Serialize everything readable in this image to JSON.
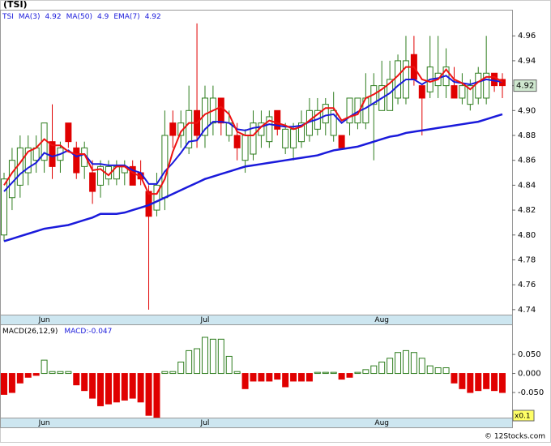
{
  "chart_data": [
    {
      "type": "candlestick",
      "title": "(TSI)",
      "ticker": "TSI",
      "categories": [
        null,
        null,
        null,
        null,
        null,
        "Jun",
        null,
        null,
        null,
        null,
        null,
        null,
        null,
        null,
        null,
        null,
        null,
        null,
        null,
        null,
        null,
        null,
        null,
        null,
        null,
        "Jul",
        null,
        null,
        null,
        null,
        null,
        null,
        null,
        null,
        null,
        null,
        null,
        null,
        null,
        null,
        null,
        null,
        null,
        null,
        null,
        null,
        null,
        "Aug",
        null,
        null,
        null,
        null,
        null,
        null,
        null,
        null,
        null,
        null,
        null,
        null,
        null,
        null,
        null
      ],
      "open": [
        4.8,
        4.83,
        4.84,
        4.85,
        4.86,
        4.86,
        4.875,
        4.86,
        4.89,
        4.87,
        4.855,
        4.85,
        4.84,
        4.845,
        4.845,
        4.85,
        4.855,
        4.85,
        4.835,
        4.82,
        4.83,
        4.89,
        4.88,
        4.87,
        4.9,
        4.88,
        4.89,
        4.91,
        4.88,
        4.88,
        4.86,
        4.865,
        4.88,
        4.875,
        4.9,
        4.87,
        4.87,
        4.875,
        4.88,
        4.885,
        4.89,
        4.88,
        4.88,
        4.89,
        4.89,
        4.89,
        4.905,
        4.9,
        4.9,
        4.91,
        4.91,
        4.945,
        4.92,
        4.915,
        4.92,
        4.92,
        4.92,
        4.91,
        4.905,
        4.91,
        4.91,
        4.93,
        4.925
      ],
      "high": [
        4.85,
        4.87,
        4.88,
        4.88,
        4.88,
        4.89,
        4.905,
        4.875,
        4.89,
        4.875,
        4.875,
        4.86,
        4.86,
        4.86,
        4.86,
        4.86,
        4.86,
        4.86,
        4.84,
        4.85,
        4.9,
        4.9,
        4.9,
        4.92,
        4.97,
        4.92,
        4.92,
        4.91,
        4.9,
        4.89,
        4.885,
        4.9,
        4.9,
        4.9,
        4.9,
        4.89,
        4.89,
        4.9,
        4.91,
        4.91,
        4.91,
        4.915,
        4.88,
        4.91,
        4.91,
        4.93,
        4.93,
        4.94,
        4.94,
        4.945,
        4.96,
        4.96,
        4.92,
        4.96,
        4.96,
        4.95,
        4.935,
        4.93,
        4.925,
        4.935,
        4.96,
        4.93,
        4.93
      ],
      "low": [
        4.795,
        4.82,
        4.83,
        4.84,
        4.85,
        4.85,
        4.845,
        4.85,
        4.87,
        4.845,
        4.845,
        4.825,
        4.83,
        4.84,
        4.84,
        4.84,
        4.84,
        4.84,
        4.74,
        4.815,
        4.82,
        4.87,
        4.87,
        4.865,
        4.87,
        4.87,
        4.88,
        4.88,
        4.875,
        4.86,
        4.85,
        4.86,
        4.87,
        4.87,
        4.88,
        4.865,
        4.86,
        4.87,
        4.875,
        4.88,
        4.88,
        4.875,
        4.87,
        4.88,
        4.885,
        4.885,
        4.86,
        4.9,
        4.9,
        4.905,
        4.905,
        4.92,
        4.88,
        4.91,
        4.91,
        4.91,
        4.91,
        4.905,
        4.9,
        4.905,
        4.905,
        4.915,
        4.91
      ],
      "close": [
        4.845,
        4.86,
        4.87,
        4.87,
        4.87,
        4.89,
        4.855,
        4.87,
        4.875,
        4.85,
        4.87,
        4.835,
        4.855,
        4.855,
        4.855,
        4.855,
        4.84,
        4.845,
        4.815,
        4.84,
        4.88,
        4.88,
        4.89,
        4.9,
        4.88,
        4.91,
        4.91,
        4.89,
        4.89,
        4.87,
        4.88,
        4.89,
        4.89,
        4.895,
        4.885,
        4.885,
        4.885,
        4.89,
        4.9,
        4.9,
        4.905,
        4.9,
        4.87,
        4.91,
        4.91,
        4.91,
        4.92,
        4.92,
        4.925,
        4.94,
        4.94,
        4.925,
        4.91,
        4.935,
        4.93,
        4.935,
        4.91,
        4.92,
        4.92,
        4.93,
        4.93,
        4.92,
        4.92
      ],
      "up_color": "#2e7d1e",
      "down_color": "#e00000",
      "series": [
        {
          "name": "MA(3)",
          "last": 4.92,
          "color": "#ee1111",
          "width": 2,
          "values": [
            4.84,
            4.85,
            4.858,
            4.867,
            4.87,
            4.877,
            4.872,
            4.872,
            4.867,
            4.865,
            4.865,
            4.852,
            4.853,
            4.848,
            4.855,
            4.855,
            4.85,
            4.847,
            4.833,
            4.833,
            4.845,
            4.867,
            4.883,
            4.89,
            4.89,
            4.897,
            4.9,
            4.903,
            4.897,
            4.883,
            4.88,
            4.88,
            4.887,
            4.892,
            4.89,
            4.888,
            4.885,
            4.887,
            4.892,
            4.897,
            4.902,
            4.902,
            4.892,
            4.895,
            4.897,
            4.91,
            4.913,
            4.917,
            4.922,
            4.928,
            4.935,
            4.935,
            4.925,
            4.923,
            4.925,
            4.933,
            4.925,
            4.922,
            4.917,
            4.923,
            4.927,
            4.927,
            4.923
          ]
        },
        {
          "name": "MA(50)",
          "last": 4.9,
          "color": "#1a1adb",
          "width": 2.5,
          "values": [
            4.795,
            4.797,
            4.799,
            4.801,
            4.803,
            4.805,
            4.806,
            4.807,
            4.808,
            4.81,
            4.812,
            4.814,
            4.817,
            4.817,
            4.817,
            4.818,
            4.82,
            4.822,
            4.824,
            4.827,
            4.83,
            4.833,
            4.836,
            4.839,
            4.842,
            4.845,
            4.847,
            4.849,
            4.851,
            4.853,
            4.855,
            4.856,
            4.857,
            4.858,
            4.859,
            4.86,
            4.861,
            4.862,
            4.863,
            4.864,
            4.866,
            4.868,
            4.869,
            4.87,
            4.871,
            4.873,
            4.875,
            4.877,
            4.879,
            4.88,
            4.882,
            4.883,
            4.884,
            4.885,
            4.886,
            4.887,
            4.888,
            4.889,
            4.89,
            4.891,
            4.893,
            4.895,
            4.897
          ]
        },
        {
          "name": "EMA(7)",
          "last": 4.92,
          "color": "#1a1adb",
          "width": 2,
          "values": [
            4.835,
            4.842,
            4.849,
            4.854,
            4.858,
            4.866,
            4.863,
            4.865,
            4.868,
            4.863,
            4.865,
            4.857,
            4.857,
            4.856,
            4.856,
            4.856,
            4.852,
            4.85,
            4.841,
            4.841,
            4.851,
            4.858,
            4.866,
            4.875,
            4.876,
            4.885,
            4.891,
            4.891,
            4.89,
            4.885,
            4.884,
            4.886,
            4.887,
            4.889,
            4.888,
            4.887,
            4.887,
            4.888,
            4.891,
            4.893,
            4.896,
            4.897,
            4.89,
            4.895,
            4.899,
            4.902,
            4.906,
            4.91,
            4.914,
            4.92,
            4.925,
            4.925,
            4.921,
            4.925,
            4.926,
            4.928,
            4.923,
            4.922,
            4.921,
            4.923,
            4.925,
            4.924,
            4.923
          ]
        }
      ],
      "last_price": 4.92,
      "ylim": [
        4.736,
        4.981
      ],
      "yticks": [
        4.74,
        4.76,
        4.78,
        {
          "value": 4.8,
          "label": "4.80"
        },
        4.82,
        4.84,
        4.86,
        4.88,
        {
          "value": 4.9,
          "label": "4.90"
        },
        4.92,
        4.94,
        4.96
      ],
      "grid": false
    },
    {
      "type": "bar",
      "title": "MACD(26,12,9)",
      "value_name": "MACD:",
      "value": -0.047,
      "up_color": "#2e7d1e",
      "down_color": "#e00000",
      "scale_label": "x0.1",
      "values": [
        -0.055,
        -0.05,
        -0.025,
        -0.01,
        -0.005,
        0.035,
        0.005,
        0.005,
        0.005,
        -0.03,
        -0.045,
        -0.065,
        -0.085,
        -0.08,
        -0.075,
        -0.07,
        -0.065,
        -0.075,
        -0.11,
        -0.115,
        0.005,
        0.005,
        0.03,
        0.06,
        0.065,
        0.095,
        0.09,
        0.09,
        0.045,
        0.005,
        -0.04,
        -0.02,
        -0.02,
        -0.02,
        -0.015,
        -0.035,
        -0.02,
        -0.02,
        -0.02,
        0.003,
        0.003,
        0.003,
        -0.015,
        -0.01,
        0.003,
        0.01,
        0.02,
        0.03,
        0.04,
        0.055,
        0.06,
        0.055,
        0.04,
        0.02,
        0.015,
        0.015,
        -0.025,
        -0.04,
        -0.05,
        -0.045,
        -0.04,
        -0.045,
        -0.05
      ],
      "ylim": [
        -0.116,
        0.129
      ],
      "yticks": [
        {
          "value": 0.05,
          "label": "0.050"
        },
        {
          "value": 0,
          "label": "0.000"
        },
        {
          "value": -0.05,
          "label": "-0.050"
        }
      ],
      "grid": false
    }
  ],
  "footer": "© 12Stocks.com"
}
